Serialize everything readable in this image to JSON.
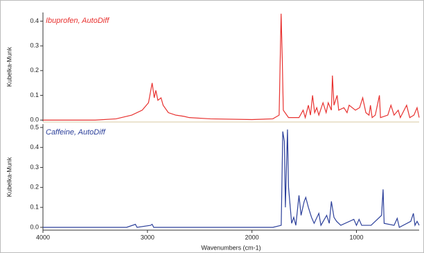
{
  "chart_data": [
    {
      "type": "line",
      "y_label": "Kubelka-Munk",
      "xlim": [
        4000,
        400
      ],
      "ylim": [
        -0.005,
        0.435
      ],
      "yticks": [
        {
          "value": 0,
          "label": "0.0"
        },
        0.1,
        0.2,
        0.3,
        0.4
      ],
      "x": [
        4000,
        3500,
        3300,
        3150,
        3050,
        2990,
        2955,
        2935,
        2920,
        2900,
        2870,
        2850,
        2800,
        2730,
        2650,
        2600,
        2400,
        2000,
        1800,
        1740,
        1721,
        1710,
        1700,
        1650,
        1550,
        1510,
        1490,
        1460,
        1440,
        1420,
        1400,
        1380,
        1360,
        1320,
        1290,
        1270,
        1240,
        1230,
        1215,
        1185,
        1170,
        1120,
        1090,
        1070,
        1010,
        970,
        940,
        910,
        880,
        866,
        850,
        820,
        780,
        770,
        700,
        670,
        640,
        600,
        580,
        520,
        490,
        450,
        420,
        400
      ],
      "series": [
        {
          "name": "Ibuprofen, AutoDiff",
          "color": "#e8312f",
          "values": [
            0,
            0,
            0.005,
            0.02,
            0.04,
            0.07,
            0.15,
            0.09,
            0.12,
            0.08,
            0.09,
            0.06,
            0.03,
            0.02,
            0.015,
            0.01,
            0.005,
            0.002,
            0.005,
            0.02,
            0.43,
            0.25,
            0.04,
            0.01,
            0.01,
            0.04,
            0.01,
            0.06,
            0.02,
            0.1,
            0.03,
            0.05,
            0.02,
            0.07,
            0.03,
            0.07,
            0.04,
            0.18,
            0.06,
            0.1,
            0.04,
            0.05,
            0.03,
            0.06,
            0.04,
            0.05,
            0.09,
            0.03,
            0.02,
            0.06,
            0.01,
            0.02,
            0.1,
            0.01,
            0.02,
            0.06,
            0.02,
            0.04,
            0.01,
            0.06,
            0.01,
            0.02,
            0.05,
            0.01
          ]
        }
      ]
    },
    {
      "type": "line",
      "y_label": "Kubelka-Munk",
      "x_label": "Wavenumbers (cm-1)",
      "xlim": [
        4000,
        400
      ],
      "ylim": [
        -0.014,
        0.517
      ],
      "xticks": [
        4000,
        3000,
        2000,
        1000
      ],
      "yticks": [
        {
          "value": 0,
          "label": "0.0"
        },
        0.1,
        0.2,
        0.3,
        0.4,
        0.5
      ],
      "x": [
        4000,
        3200,
        3115,
        3100,
        2970,
        2955,
        2940,
        1800,
        1720,
        1705,
        1690,
        1680,
        1660,
        1650,
        1620,
        1600,
        1580,
        1550,
        1530,
        1500,
        1485,
        1460,
        1430,
        1405,
        1360,
        1340,
        1285,
        1260,
        1240,
        1215,
        1190,
        1150,
        1025,
        1000,
        975,
        950,
        860,
        760,
        745,
        735,
        640,
        610,
        590,
        480,
        455,
        440,
        420,
        400
      ],
      "series": [
        {
          "name": "Caffeine, AutoDiff",
          "color": "#2b3f9a",
          "values": [
            0,
            0,
            0.015,
            0,
            0.01,
            0.015,
            0,
            0,
            0.01,
            0.48,
            0.43,
            0.1,
            0.49,
            0.2,
            0.02,
            0.05,
            0.01,
            0.16,
            0.06,
            0.13,
            0.15,
            0.1,
            0.05,
            0.02,
            0.07,
            0.01,
            0.06,
            0.02,
            0.13,
            0.05,
            0.03,
            0.01,
            0.04,
            0.01,
            0.04,
            0.01,
            0.01,
            0.06,
            0.19,
            0.02,
            0.01,
            0.045,
            0,
            0.03,
            0.07,
            0.01,
            0.03,
            0.01
          ]
        }
      ]
    }
  ]
}
